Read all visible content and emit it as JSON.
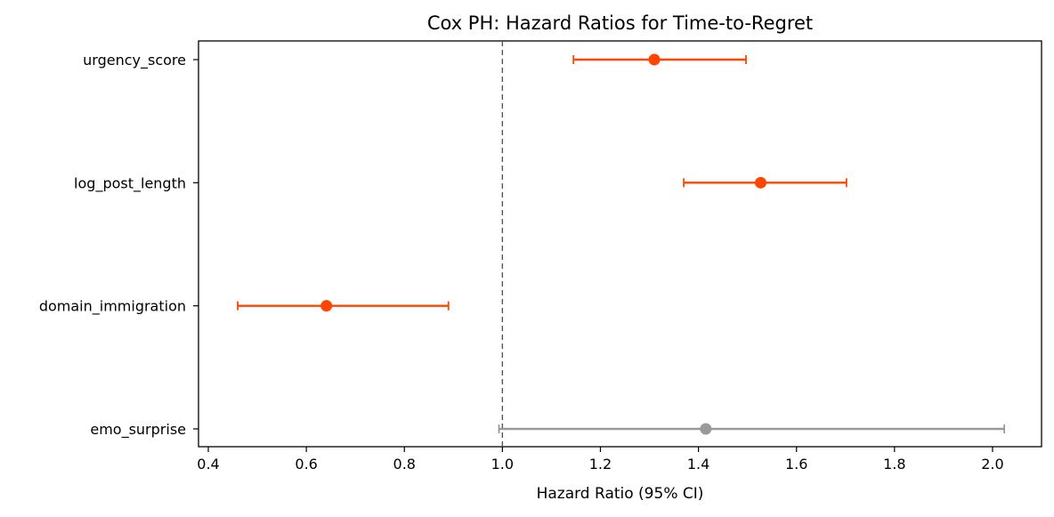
{
  "chart_data": {
    "type": "forest",
    "title": "Cox PH: Hazard Ratios for Time-to-Regret",
    "xlabel": "Hazard Ratio (95% CI)",
    "ylabel": "",
    "xlim": [
      0.38,
      2.1
    ],
    "xticks": [
      0.4,
      0.6,
      0.8,
      1.0,
      1.2,
      1.4,
      1.6,
      1.8,
      2.0
    ],
    "xtick_labels": [
      "0.4",
      "0.6",
      "0.8",
      "1.0",
      "1.2",
      "1.4",
      "1.6",
      "1.8",
      "2.0"
    ],
    "reference_line": 1.0,
    "grid": false,
    "colors": {
      "significant": "#ff4500",
      "nonsignificant": "#999999",
      "reference": "#555555"
    },
    "series": [
      {
        "label": "urgency_score",
        "hr": 1.31,
        "ci_low": 1.145,
        "ci_high": 1.497,
        "significant": true
      },
      {
        "label": "log_post_length",
        "hr": 1.527,
        "ci_low": 1.37,
        "ci_high": 1.702,
        "significant": true
      },
      {
        "label": "domain_immigration",
        "hr": 0.641,
        "ci_low": 0.46,
        "ci_high": 0.89,
        "significant": true
      },
      {
        "label": "emo_surprise",
        "hr": 1.415,
        "ci_low": 0.993,
        "ci_high": 2.024,
        "significant": false
      }
    ]
  }
}
